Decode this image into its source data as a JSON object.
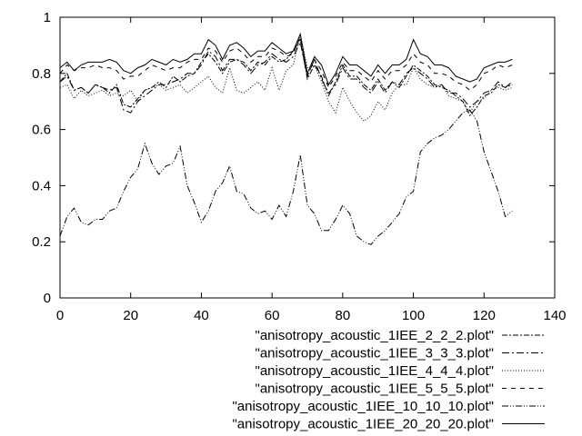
{
  "chart_data": {
    "type": "line",
    "title": "",
    "xlabel": "",
    "ylabel": "",
    "xlim": [
      0,
      140
    ],
    "ylim": [
      0,
      1
    ],
    "x_ticks": [
      0,
      20,
      40,
      60,
      80,
      100,
      120,
      140
    ],
    "y_ticks": [
      0,
      0.2,
      0.4,
      0.6,
      0.8,
      1
    ],
    "x_tick_labels": [
      "0",
      "20",
      "40",
      "60",
      "80",
      "100",
      "120",
      "140"
    ],
    "y_tick_labels": [
      "0",
      "0.2",
      "0.4",
      "0.6",
      "0.8",
      "1"
    ],
    "grid": false,
    "legend_position": "bottom-right",
    "x": [
      0,
      2,
      4,
      6,
      8,
      10,
      12,
      14,
      16,
      18,
      20,
      22,
      24,
      26,
      28,
      30,
      32,
      34,
      36,
      38,
      40,
      42,
      44,
      46,
      48,
      50,
      52,
      54,
      56,
      58,
      60,
      62,
      64,
      66,
      68,
      70,
      72,
      74,
      76,
      78,
      80,
      82,
      84,
      86,
      88,
      90,
      92,
      94,
      96,
      98,
      100,
      102,
      104,
      106,
      108,
      110,
      112,
      114,
      116,
      118,
      120,
      122,
      124,
      126,
      128
    ],
    "series": [
      {
        "name": "\"anisotropy_acoustic_1IEE_2_2_2.plot\"",
        "dash": "6,2,2,2",
        "values": [
          0.77,
          0.8,
          0.74,
          0.75,
          0.73,
          0.76,
          0.75,
          0.73,
          0.76,
          0.69,
          0.68,
          0.71,
          0.74,
          0.75,
          0.77,
          0.75,
          0.79,
          0.77,
          0.79,
          0.8,
          0.84,
          0.87,
          0.84,
          0.8,
          0.84,
          0.85,
          0.84,
          0.81,
          0.84,
          0.83,
          0.86,
          0.84,
          0.85,
          0.88,
          0.92,
          0.78,
          0.83,
          0.79,
          0.72,
          0.77,
          0.83,
          0.79,
          0.79,
          0.76,
          0.74,
          0.78,
          0.74,
          0.77,
          0.75,
          0.79,
          0.83,
          0.81,
          0.79,
          0.76,
          0.75,
          0.74,
          0.72,
          0.7,
          0.65,
          0.68,
          0.72,
          0.73,
          0.76,
          0.75,
          0.76
        ]
      },
      {
        "name": "\"anisotropy_acoustic_1IEE_3_3_3.plot\"",
        "dash": "8,3,2,3",
        "values": [
          0.77,
          0.79,
          0.74,
          0.75,
          0.73,
          0.76,
          0.75,
          0.74,
          0.75,
          0.67,
          0.66,
          0.7,
          0.72,
          0.74,
          0.76,
          0.76,
          0.77,
          0.78,
          0.8,
          0.8,
          0.83,
          0.88,
          0.86,
          0.81,
          0.85,
          0.85,
          0.83,
          0.8,
          0.83,
          0.84,
          0.87,
          0.85,
          0.84,
          0.86,
          0.91,
          0.79,
          0.85,
          0.78,
          0.73,
          0.76,
          0.82,
          0.78,
          0.78,
          0.75,
          0.73,
          0.77,
          0.73,
          0.77,
          0.76,
          0.8,
          0.82,
          0.8,
          0.78,
          0.75,
          0.76,
          0.73,
          0.73,
          0.71,
          0.68,
          0.7,
          0.73,
          0.74,
          0.77,
          0.75,
          0.77
        ]
      },
      {
        "name": "\"anisotropy_acoustic_1IEE_4_4_4.plot\"",
        "dash": "1,2",
        "values": [
          0.75,
          0.76,
          0.71,
          0.74,
          0.72,
          0.73,
          0.74,
          0.72,
          0.73,
          0.72,
          0.74,
          0.7,
          0.74,
          0.75,
          0.76,
          0.74,
          0.75,
          0.76,
          0.73,
          0.75,
          0.77,
          0.79,
          0.75,
          0.73,
          0.82,
          0.74,
          0.73,
          0.75,
          0.77,
          0.74,
          0.82,
          0.74,
          0.81,
          0.83,
          0.94,
          0.82,
          0.83,
          0.77,
          0.7,
          0.66,
          0.75,
          0.7,
          0.66,
          0.63,
          0.65,
          0.7,
          0.67,
          0.73,
          0.76,
          0.76,
          0.82,
          0.78,
          0.76,
          0.75,
          0.76,
          0.72,
          0.71,
          0.7,
          0.66,
          0.7,
          0.71,
          0.74,
          0.75,
          0.74,
          0.75
        ]
      },
      {
        "name": "\"anisotropy_acoustic_1IEE_5_5_5.plot\"",
        "dash": "5,5",
        "values": [
          0.8,
          0.83,
          0.81,
          0.82,
          0.82,
          0.83,
          0.82,
          0.82,
          0.81,
          0.78,
          0.79,
          0.79,
          0.81,
          0.83,
          0.82,
          0.81,
          0.82,
          0.82,
          0.84,
          0.85,
          0.85,
          0.89,
          0.88,
          0.84,
          0.88,
          0.89,
          0.87,
          0.84,
          0.86,
          0.86,
          0.89,
          0.88,
          0.86,
          0.87,
          0.93,
          0.79,
          0.85,
          0.81,
          0.75,
          0.79,
          0.84,
          0.81,
          0.81,
          0.79,
          0.77,
          0.81,
          0.78,
          0.81,
          0.81,
          0.83,
          0.87,
          0.84,
          0.83,
          0.8,
          0.8,
          0.79,
          0.77,
          0.76,
          0.74,
          0.76,
          0.8,
          0.81,
          0.83,
          0.82,
          0.83
        ]
      },
      {
        "name": "\"anisotropy_acoustic_1IEE_10_10_10.plot\"",
        "dash": "7,2,1,2,1,2",
        "values": [
          0.22,
          0.29,
          0.32,
          0.27,
          0.26,
          0.28,
          0.28,
          0.31,
          0.32,
          0.38,
          0.43,
          0.46,
          0.55,
          0.48,
          0.44,
          0.47,
          0.48,
          0.54,
          0.4,
          0.34,
          0.27,
          0.31,
          0.38,
          0.41,
          0.47,
          0.38,
          0.37,
          0.32,
          0.3,
          0.31,
          0.28,
          0.33,
          0.29,
          0.38,
          0.51,
          0.33,
          0.3,
          0.24,
          0.24,
          0.28,
          0.33,
          0.3,
          0.22,
          0.2,
          0.19,
          0.22,
          0.24,
          0.27,
          0.3,
          0.36,
          0.38,
          0.52,
          0.55,
          0.57,
          0.58,
          0.6,
          0.63,
          0.66,
          0.67,
          0.63,
          0.52,
          0.45,
          0.38,
          0.29,
          0.31
        ]
      },
      {
        "name": "\"anisotropy_acoustic_1IEE_20_20_20.plot\"",
        "dash": "",
        "values": [
          0.82,
          0.84,
          0.81,
          0.83,
          0.84,
          0.84,
          0.84,
          0.85,
          0.84,
          0.81,
          0.8,
          0.82,
          0.83,
          0.85,
          0.84,
          0.83,
          0.85,
          0.84,
          0.85,
          0.87,
          0.87,
          0.92,
          0.9,
          0.85,
          0.9,
          0.91,
          0.89,
          0.86,
          0.88,
          0.88,
          0.91,
          0.89,
          0.87,
          0.88,
          0.94,
          0.8,
          0.86,
          0.83,
          0.76,
          0.8,
          0.86,
          0.83,
          0.83,
          0.81,
          0.79,
          0.83,
          0.8,
          0.83,
          0.83,
          0.85,
          0.92,
          0.87,
          0.86,
          0.83,
          0.83,
          0.82,
          0.79,
          0.78,
          0.77,
          0.78,
          0.82,
          0.83,
          0.84,
          0.84,
          0.85
        ]
      }
    ]
  }
}
